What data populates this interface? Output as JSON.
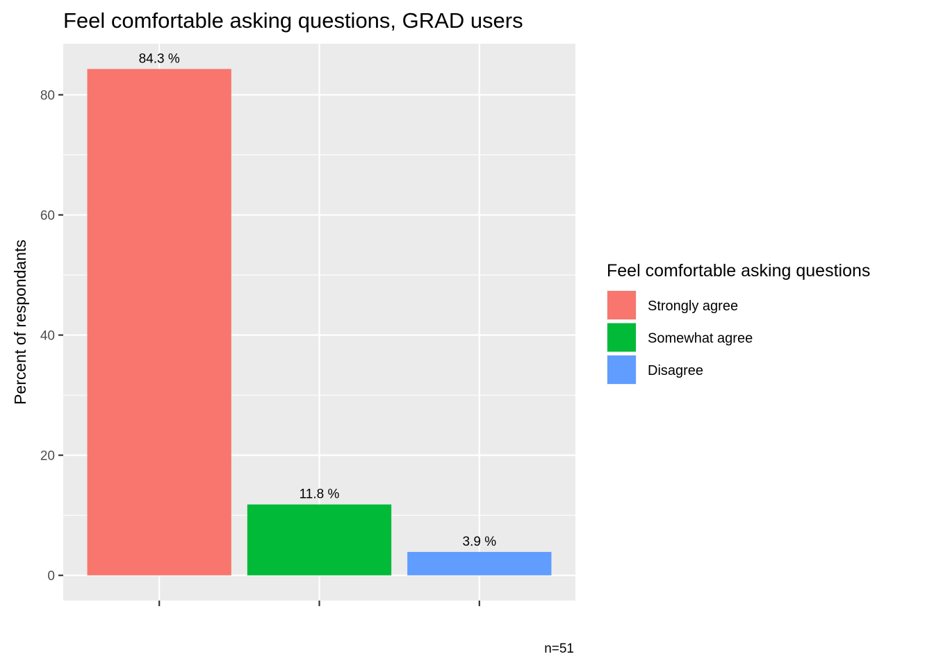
{
  "chart_data": {
    "type": "bar",
    "title": "Feel comfortable asking questions,  GRAD users",
    "xlabel": "",
    "ylabel": "Percent of respondants",
    "categories": [
      "Strongly agree",
      "Somewhat agree",
      "Disagree"
    ],
    "values": [
      84.3,
      11.8,
      3.9
    ],
    "data_labels": [
      "84.3 %",
      "11.8 %",
      "3.9 %"
    ],
    "colors": [
      "#F8766D",
      "#00BA38",
      "#619CFF"
    ],
    "ylim": [
      -4.2,
      88.5
    ],
    "y_ticks": [
      0,
      20,
      40,
      60,
      80
    ],
    "y_tick_labels": [
      "0",
      "20",
      "40",
      "60",
      "80"
    ],
    "y_minor_ticks": [
      10,
      30,
      50,
      70
    ],
    "grid": true,
    "panel_background": "#EBEBEB",
    "legend": {
      "title": "Feel comfortable asking questions",
      "position": "right",
      "items": [
        "Strongly agree",
        "Somewhat agree",
        "Disagree"
      ]
    },
    "caption": "n=51"
  }
}
